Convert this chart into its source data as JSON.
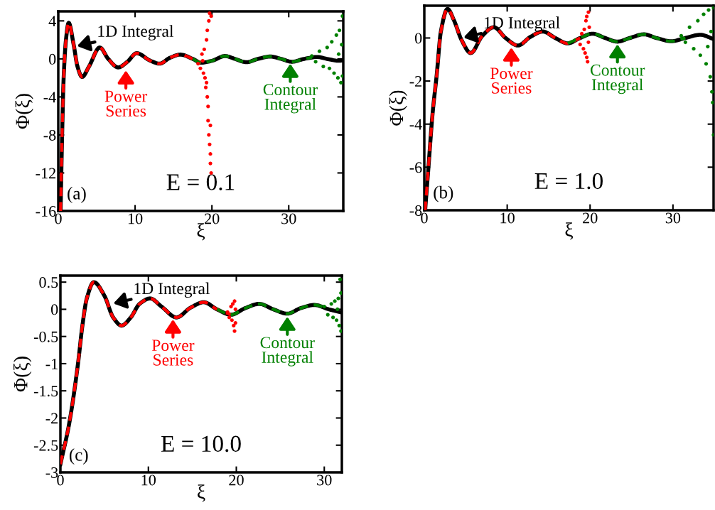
{
  "chart_data": [
    {
      "type": "line",
      "xlabel": "ξ",
      "ylabel": "Φ(ξ)",
      "xlim": [
        0,
        37.1
      ],
      "ylim": [
        -16,
        5
      ],
      "xticks": [
        0,
        10,
        20,
        30
      ],
      "yticks": [
        -16,
        -12,
        -8,
        -4,
        0,
        4
      ],
      "grid": false,
      "legend": false,
      "series": [
        {
          "type": "line",
          "color": "#000000",
          "line_style": "solid",
          "x": [
            0.3,
            0.5,
            0.7,
            1.0,
            1.35,
            2.0,
            2.5,
            3.1,
            4.0,
            5.4,
            6.5,
            7.8,
            9.0,
            10.2,
            12.0,
            13.2,
            14.5,
            15.9,
            17.5,
            18.6,
            20.0,
            21.7,
            23.0,
            24.5,
            26.0,
            27.6,
            29.0,
            30.4,
            32.0,
            33.7,
            35.0,
            36.5,
            37.1
          ],
          "values": [
            -16,
            -8,
            -2,
            2,
            3.8,
            1.5,
            -0.8,
            -1.9,
            -0.8,
            1.2,
            0,
            -0.9,
            -0.3,
            0.6,
            -0.2,
            -0.5,
            0.1,
            0.45,
            0,
            -0.4,
            -0.2,
            0.3,
            0,
            -0.35,
            0,
            0.25,
            0,
            -0.3,
            0,
            0.2,
            0,
            -0.2,
            -0.15
          ]
        },
        {
          "type": "line",
          "color": "#ff0000",
          "line_style": "dashed",
          "x": [
            0.3,
            0.5,
            0.7,
            1.0,
            1.35,
            2.0,
            2.5,
            3.1,
            4.0,
            5.4,
            6.5,
            7.8,
            9.0,
            10.2,
            12.0,
            13.2,
            14.5,
            15.9,
            17.5,
            18.6
          ],
          "values": [
            -16,
            -8,
            -2,
            2,
            3.8,
            1.5,
            -0.8,
            -1.9,
            -0.8,
            1.2,
            0,
            -0.9,
            -0.3,
            0.6,
            -0.2,
            -0.5,
            0.1,
            0.45,
            0,
            -0.4
          ]
        },
        {
          "type": "line",
          "color": "#008000",
          "line_style": "dashed",
          "x": [
            17.5,
            18.6,
            20.0,
            21.7,
            23.0,
            24.5,
            26.0,
            27.6,
            29.0,
            30.4,
            32.0,
            33.0
          ],
          "values": [
            0,
            -0.4,
            -0.2,
            0.3,
            0,
            -0.35,
            0,
            0.25,
            0,
            -0.3,
            0,
            0.15
          ]
        },
        {
          "type": "scatter",
          "color": "#ff0000",
          "marker": "circle",
          "x": [
            18.2,
            18.5,
            18.7,
            18.9,
            19.0,
            19.1,
            19.2,
            19.3,
            19.4,
            19.4,
            19.5,
            19.5,
            19.6,
            19.6,
            19.7,
            19.7,
            19.8,
            19.8,
            19.9,
            19.3,
            18.8,
            19.9,
            19.8
          ],
          "values": [
            -0.5,
            -1,
            0.5,
            -1.5,
            1,
            -2,
            -3,
            2,
            -4,
            3,
            -5,
            -6.5,
            4,
            -8,
            -9,
            4.8,
            -11,
            -10,
            -12,
            -2.5,
            -0.2,
            4.5,
            -7
          ]
        },
        {
          "type": "scatter",
          "color": "#008000",
          "marker": "circle",
          "x": [
            33,
            33.5,
            34,
            34.5,
            35,
            35.3,
            35.6,
            35.9,
            36.2,
            36.4,
            36.6,
            36.8,
            37,
            37,
            36.9,
            36.5
          ],
          "values": [
            0.3,
            -0.3,
            0.8,
            -0.8,
            1.2,
            -1,
            1.8,
            -1.5,
            2.5,
            -2,
            3,
            -2.5,
            4.5,
            -1.8,
            1.5,
            0.5
          ]
        }
      ],
      "annotations": [
        {
          "text": "1D Integral",
          "x": 2.2,
          "y": 1.3
        },
        {
          "text": "Power\nSeries",
          "x": 8.8,
          "y": -1.0
        },
        {
          "text": "Contour\nIntegral",
          "x": 30.2,
          "y": -0.3
        },
        "(a)",
        "E = 0.1"
      ]
    },
    {
      "type": "line",
      "xlabel": "ξ",
      "ylabel": "Φ(ξ)",
      "xlim": [
        0,
        34.9
      ],
      "ylim": [
        -8,
        1.5
      ],
      "xticks": [
        0,
        10,
        20,
        30
      ],
      "yticks": [
        -8,
        -6,
        -4,
        -2,
        0
      ],
      "grid": false,
      "legend": false,
      "series": [
        {
          "type": "line",
          "color": "#000000",
          "line_style": "solid",
          "x": [
            0.1,
            0.5,
            1.0,
            1.5,
            2.0,
            2.8,
            3.6,
            4.5,
            5.6,
            7.0,
            8.4,
            9.8,
            11.3,
            12.8,
            14.3,
            15.8,
            17.3,
            18.8,
            20.3,
            21.8,
            23.3,
            24.8,
            26.5,
            28.0,
            29.8,
            31.5,
            33.3,
            34.9
          ],
          "values": [
            -8,
            -6,
            -3.5,
            -1.7,
            0.3,
            1.35,
            0.8,
            -0.1,
            -0.7,
            0.1,
            0.5,
            0,
            -0.35,
            0.05,
            0.3,
            0,
            -0.25,
            0,
            0.2,
            0,
            -0.17,
            0,
            0.17,
            0,
            -0.15,
            0,
            0.15,
            -0.05
          ]
        },
        {
          "type": "line",
          "color": "#ff0000",
          "line_style": "dashed",
          "x": [
            0.1,
            0.5,
            1.0,
            1.5,
            2.0,
            2.8,
            3.6,
            4.5,
            5.6,
            7.0,
            8.4,
            9.8,
            11.3,
            12.8,
            14.3,
            15.8,
            17.3,
            18.8
          ],
          "values": [
            -8,
            -6,
            -3.5,
            -1.7,
            0.3,
            1.35,
            0.8,
            -0.1,
            -0.7,
            0.1,
            0.5,
            0,
            -0.35,
            0.05,
            0.3,
            0,
            -0.25,
            0
          ]
        },
        {
          "type": "line",
          "color": "#008000",
          "line_style": "dashed",
          "x": [
            17.3,
            18.8,
            20.3,
            21.8,
            23.3,
            24.8,
            26.5,
            28.0,
            29.8,
            31.5
          ],
          "values": [
            -0.25,
            0,
            0.2,
            0,
            -0.17,
            0,
            0.17,
            0,
            -0.15,
            0
          ]
        },
        {
          "type": "scatter",
          "color": "#ff0000",
          "marker": "circle",
          "x": [
            18.8,
            19.0,
            19.2,
            19.3,
            19.4,
            19.5,
            19.6,
            19.6,
            19.7,
            19.8,
            19.8,
            19.9
          ],
          "values": [
            -0.3,
            0.2,
            -0.5,
            0.4,
            -0.7,
            0.8,
            -0.9,
            1.0,
            -1.1,
            1.2,
            -0.2,
            0.5
          ]
        },
        {
          "type": "scatter",
          "color": "#008000",
          "marker": "circle",
          "x": [
            31,
            31.5,
            32,
            32.5,
            33,
            33.3,
            33.7,
            34,
            34.3,
            34.5,
            34.7,
            34.8,
            34.9,
            34.9,
            34.6,
            34.2
          ],
          "values": [
            0.1,
            -0.2,
            0.5,
            -0.5,
            0.8,
            -0.8,
            1.1,
            -1.2,
            1.3,
            -1.8,
            -2.5,
            -3,
            -4.5,
            1.4,
            0.3,
            -0.4
          ]
        }
      ],
      "annotations": [
        {
          "text": "1D Integral",
          "x": 4.5,
          "y": 0
        },
        {
          "text": "Power\nSeries",
          "x": 10.5,
          "y": -0.35
        },
        {
          "text": "Contour\nIntegral",
          "x": 23.3,
          "y": -0.2
        },
        "(b)",
        "E = 1.0"
      ]
    },
    {
      "type": "line",
      "xlabel": "ξ",
      "ylabel": "Φ(ξ)",
      "xlim": [
        0,
        32
      ],
      "ylim": [
        -3,
        0.62
      ],
      "xticks": [
        0,
        10,
        20,
        30
      ],
      "yticks": [
        -3,
        -2.5,
        -2,
        -1.5,
        -1,
        -0.5,
        0,
        0.5
      ],
      "grid": false,
      "legend": false,
      "series": [
        {
          "type": "line",
          "color": "#000000",
          "line_style": "solid",
          "x": [
            0,
            1,
            2,
            2.5,
            3,
            3.8,
            5,
            6,
            6.95,
            8,
            9,
            10.2,
            11.5,
            13.2,
            14.8,
            16.3,
            17.8,
            19.4,
            21,
            22.6,
            24.2,
            25.8,
            27.3,
            28.9,
            30.5,
            32
          ],
          "values": [
            -2.85,
            -2.1,
            -1.0,
            -0.3,
            0.2,
            0.5,
            0.25,
            -0.15,
            -0.3,
            -0.15,
            0.1,
            0.2,
            0.05,
            -0.15,
            0.03,
            0.13,
            0,
            -0.1,
            0.02,
            0.1,
            0,
            -0.08,
            0.02,
            0.08,
            0,
            -0.06
          ]
        },
        {
          "type": "line",
          "color": "#ff0000",
          "line_style": "dashed",
          "x": [
            0,
            1,
            2,
            2.5,
            3,
            3.8,
            5,
            6,
            6.95,
            8,
            9,
            10.2,
            11.5,
            13.2,
            14.8,
            16.3,
            17.8,
            19.4
          ],
          "values": [
            -2.85,
            -2.1,
            -1.0,
            -0.3,
            0.2,
            0.5,
            0.25,
            -0.15,
            -0.3,
            -0.15,
            0.1,
            0.2,
            0.05,
            -0.15,
            0.03,
            0.13,
            0,
            -0.1
          ]
        },
        {
          "type": "line",
          "color": "#008000",
          "line_style": "dashed",
          "x": [
            17.8,
            19.4,
            21,
            22.6,
            24.2,
            25.8,
            27.3,
            28.9,
            30.0
          ],
          "values": [
            0,
            -0.1,
            0.02,
            0.1,
            0,
            -0.08,
            0.02,
            0.08,
            0.04
          ]
        },
        {
          "type": "scatter",
          "color": "#ff0000",
          "marker": "circle",
          "x": [
            19.0,
            19.2,
            19.4,
            19.5,
            19.6,
            19.7,
            19.8,
            19.8,
            19.9,
            19.9
          ],
          "values": [
            -0.05,
            -0.15,
            0.05,
            -0.2,
            0.1,
            -0.3,
            0.15,
            -0.4,
            0,
            -0.25
          ]
        },
        {
          "type": "scatter",
          "color": "#008000",
          "marker": "circle",
          "x": [
            30.0,
            30.4,
            30.8,
            31.0,
            31.2,
            31.4,
            31.6,
            31.7,
            31.8,
            31.9,
            31.9,
            31.5
          ],
          "values": [
            0.05,
            -0.1,
            0.1,
            -0.15,
            0.15,
            -0.2,
            0.2,
            -0.3,
            0.55,
            -0.4,
            0.3,
            0
          ]
        }
      ],
      "annotations": [
        {
          "text": "1D Integral",
          "x": 5.8,
          "y": 0.1
        },
        {
          "text": "Power\nSeries",
          "x": 12.8,
          "y": -0.15
        },
        {
          "text": "Contour\nIntegral",
          "x": 25.8,
          "y": -0.1
        },
        "(c)",
        "E = 10.0"
      ]
    }
  ]
}
